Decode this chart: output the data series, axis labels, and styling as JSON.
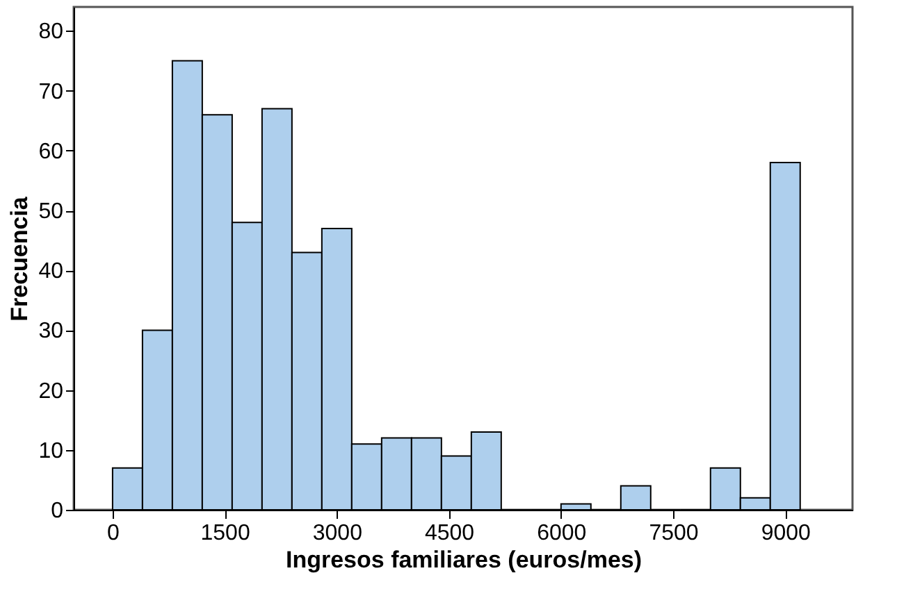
{
  "chart_data": {
    "type": "histogram",
    "xlabel": "Ingresos familiares (euros/mes)",
    "ylabel": "Frecuencia",
    "bins": [
      0,
      400,
      800,
      1200,
      1600,
      2000,
      2400,
      2800,
      3200,
      3600,
      4000,
      4400,
      4800,
      5200,
      5600,
      6000,
      6400,
      6800,
      7200,
      7600,
      8000,
      8400,
      8800,
      9200
    ],
    "values": [
      7,
      30,
      75,
      66,
      48,
      67,
      43,
      47,
      11,
      12,
      12,
      9,
      13,
      0,
      0,
      1,
      0,
      4,
      0,
      0,
      7,
      2,
      58
    ],
    "color": "#aecfed",
    "xlim": [
      -520,
      9900
    ],
    "xticks": [
      0,
      1500,
      3000,
      4500,
      6000,
      7500,
      9000
    ],
    "ylim": [
      0,
      84
    ],
    "yticks": [
      0,
      10,
      20,
      30,
      40,
      50,
      60,
      70,
      80
    ],
    "grid": false
  }
}
